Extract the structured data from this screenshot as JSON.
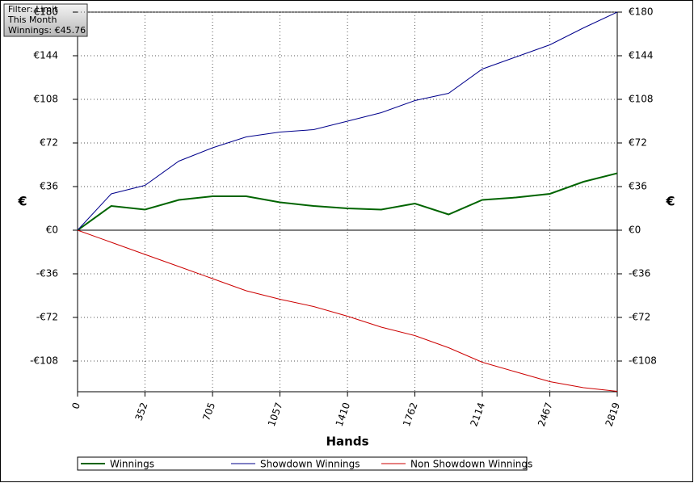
{
  "chart_data": {
    "type": "line",
    "info": [
      "Filter: Limit",
      "This Month",
      "Winnings: €45.76"
    ],
    "xlabel": "Hands",
    "ylabel": "€",
    "x": [
      0,
      176,
      352,
      529,
      705,
      881,
      1057,
      1233,
      1410,
      1586,
      1762,
      1938,
      2114,
      2290,
      2467,
      2643,
      2819
    ],
    "series": [
      {
        "name": "Winnings",
        "color": "#006400",
        "values": [
          0,
          20,
          17,
          25,
          28,
          28,
          23,
          20,
          18,
          17,
          22,
          13,
          25,
          27,
          30,
          40,
          47
        ]
      },
      {
        "name": "Showdown Winnings",
        "color": "#00008b",
        "values": [
          0,
          30,
          37,
          57,
          68,
          77,
          81,
          83,
          90,
          97,
          107,
          113,
          133,
          143,
          153,
          167,
          180
        ]
      },
      {
        "name": "Non Showdown Winnings",
        "color": "#cc0000",
        "values": [
          0,
          -10,
          -20,
          -30,
          -40,
          -50,
          -57,
          -63,
          -71,
          -80,
          -87,
          -97,
          -109,
          -117,
          -125,
          -130,
          -133
        ]
      }
    ],
    "xlim": [
      0,
      2819
    ],
    "xticks": [
      0,
      352,
      705,
      1057,
      1410,
      1762,
      2114,
      2467,
      2819
    ],
    "ylim": [
      -133.33,
      180
    ],
    "yticks": [
      {
        "value": -108,
        "label": "-€108"
      },
      {
        "value": -72,
        "label": "-€72"
      },
      {
        "value": -36,
        "label": "-€36"
      },
      {
        "value": 0,
        "label": "€0"
      },
      {
        "value": 36,
        "label": "€36"
      },
      {
        "value": 72,
        "label": "€72"
      },
      {
        "value": 108,
        "label": "€108"
      },
      {
        "value": 144,
        "label": "€144"
      },
      {
        "value": 180,
        "label": "€180"
      }
    ],
    "grid": true
  }
}
